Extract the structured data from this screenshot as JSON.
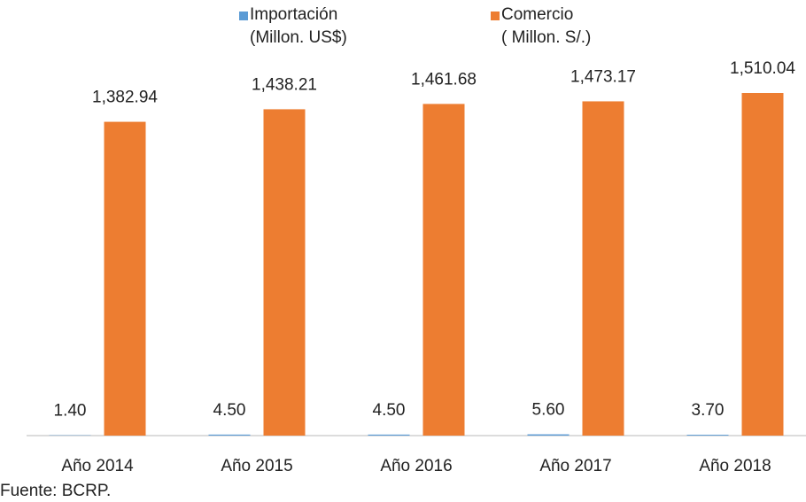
{
  "chart_data": {
    "type": "bar",
    "categories": [
      "Año 2014",
      "Año 2015",
      "Año 2016",
      "Año 2017",
      "Año 2018"
    ],
    "series": [
      {
        "name": "Importación\n(Millon. US$)",
        "color": "#5b9bd5",
        "values": [
          1.4,
          4.5,
          4.5,
          5.6,
          3.7
        ],
        "value_labels": [
          "1.40",
          "4.50",
          "4.50",
          "5.60",
          "3.70"
        ]
      },
      {
        "name": "Comercio\n( Millon. S/.)",
        "color": "#ed7d31",
        "values": [
          1382.94,
          1438.21,
          1461.68,
          1473.17,
          1510.04
        ],
        "value_labels": [
          "1,382.94",
          "1,438.21",
          "1,461.68",
          "1,473.17",
          "1,510.04"
        ]
      }
    ],
    "source": "Fuente: BCRP."
  }
}
